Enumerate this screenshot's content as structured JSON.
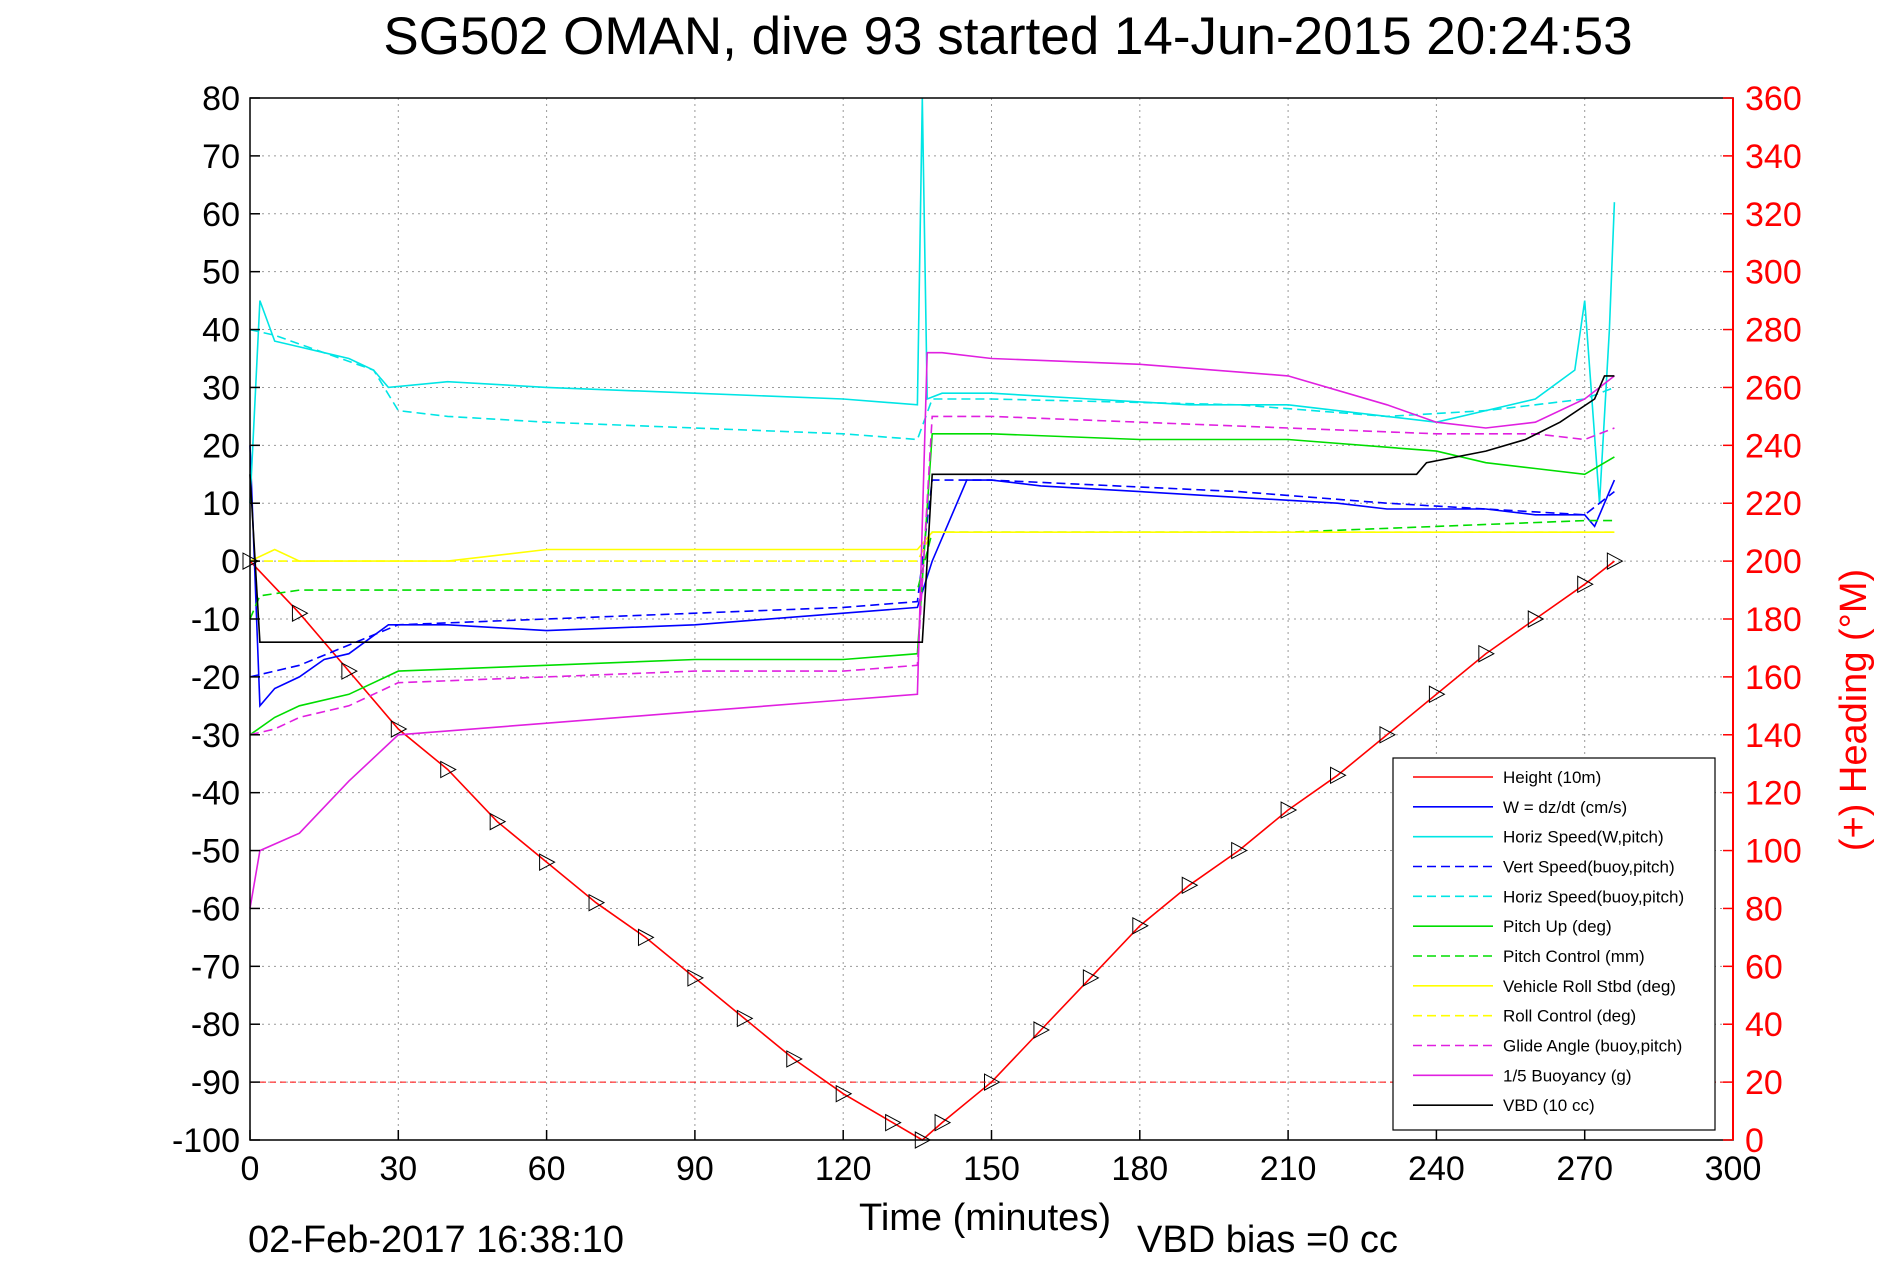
{
  "chart_data": {
    "type": "line",
    "title": "SG502 OMAN, dive 93 started 14-Jun-2015 20:24:53",
    "xlabel": "Time (minutes)",
    "ylabel": "",
    "y2label": "(+) Heading (°M)",
    "xlim": [
      0,
      300
    ],
    "ylim": [
      -100,
      80
    ],
    "y2lim": [
      0,
      360
    ],
    "xticks": [
      0,
      30,
      60,
      90,
      120,
      150,
      180,
      210,
      240,
      270,
      300
    ],
    "yticks": [
      80,
      70,
      60,
      50,
      40,
      30,
      20,
      10,
      0,
      -10,
      -20,
      -30,
      -40,
      -50,
      -60,
      -70,
      -80,
      -90,
      -100
    ],
    "y2ticks": [
      360,
      340,
      320,
      300,
      280,
      260,
      240,
      220,
      200,
      180,
      160,
      140,
      120,
      100,
      80,
      60,
      40,
      20,
      0
    ],
    "grid": true,
    "legend_position": "lower-right",
    "footer_left": "02-Feb-2017 16:38:10",
    "footer_right": "VBD bias =0 cc",
    "series": [
      {
        "name": "Height (10m)",
        "color": "#ff0000",
        "dash": "solid",
        "x": [
          0,
          10,
          20,
          30,
          40,
          50,
          60,
          70,
          80,
          90,
          100,
          110,
          120,
          130,
          136,
          140,
          150,
          160,
          170,
          180,
          190,
          200,
          210,
          220,
          230,
          240,
          250,
          260,
          270,
          276
        ],
        "y": [
          0,
          -9,
          -19,
          -29,
          -36,
          -45,
          -52,
          -59,
          -65,
          -72,
          -79,
          -86,
          -92,
          -97,
          -100,
          -97,
          -90,
          -81,
          -72,
          -63,
          -56,
          -50,
          -43,
          -37,
          -30,
          -23,
          -16,
          -10,
          -4,
          0
        ]
      },
      {
        "name": "W = dz/dt (cm/s)",
        "color": "#0000ff",
        "dash": "solid",
        "x": [
          0,
          2,
          5,
          10,
          15,
          20,
          28,
          40,
          60,
          90,
          120,
          135,
          138,
          145,
          150,
          160,
          180,
          200,
          220,
          230,
          240,
          250,
          260,
          270,
          272,
          275,
          276
        ],
        "y": [
          20,
          -25,
          -22,
          -20,
          -17,
          -16,
          -11,
          -11,
          -12,
          -11,
          -9,
          -8,
          0,
          14,
          14,
          13,
          12,
          11,
          10,
          9,
          9,
          9,
          8,
          8,
          6,
          12,
          14
        ]
      },
      {
        "name": "Horiz Speed(W,pitch)",
        "color": "#00e5e5",
        "dash": "solid",
        "x": [
          0,
          2,
          5,
          10,
          15,
          20,
          25,
          28,
          40,
          60,
          90,
          120,
          135,
          136,
          137,
          140,
          150,
          170,
          190,
          210,
          230,
          240,
          250,
          260,
          268,
          270,
          273,
          275,
          276
        ],
        "y": [
          10,
          45,
          38,
          37,
          36,
          35,
          33,
          30,
          31,
          30,
          29,
          28,
          27,
          80,
          28,
          29,
          29,
          28,
          27,
          27,
          25,
          24,
          26,
          28,
          33,
          45,
          10,
          40,
          62
        ]
      },
      {
        "name": "Vert Speed(buoy,pitch)",
        "color": "#0000ff",
        "dash": "dash",
        "x": [
          0,
          10,
          30,
          60,
          90,
          120,
          135,
          138,
          150,
          200,
          230,
          250,
          270,
          276
        ],
        "y": [
          -20,
          -18,
          -11,
          -10,
          -9,
          -8,
          -7,
          14,
          14,
          12,
          10,
          9,
          8,
          12
        ]
      },
      {
        "name": "Horiz Speed(buoy,pitch)",
        "color": "#00e5e5",
        "dash": "dash",
        "x": [
          0,
          5,
          15,
          25,
          30,
          40,
          60,
          90,
          120,
          135,
          138,
          150,
          200,
          230,
          250,
          270,
          276
        ],
        "y": [
          40,
          39,
          36,
          33,
          26,
          25,
          24,
          23,
          22,
          21,
          28,
          28,
          27,
          25,
          26,
          28,
          30
        ]
      },
      {
        "name": "Pitch Up (deg)",
        "color": "#00dd00",
        "dash": "solid",
        "x": [
          0,
          5,
          10,
          20,
          30,
          60,
          90,
          120,
          135,
          138,
          150,
          180,
          210,
          240,
          250,
          260,
          270,
          276
        ],
        "y": [
          -30,
          -27,
          -25,
          -23,
          -19,
          -18,
          -17,
          -17,
          -16,
          22,
          22,
          21,
          21,
          19,
          17,
          16,
          15,
          18
        ]
      },
      {
        "name": "Pitch Control (mm)",
        "color": "#00dd00",
        "dash": "dash",
        "x": [
          0,
          2,
          10,
          30,
          60,
          90,
          120,
          135,
          138,
          150,
          180,
          210,
          240,
          270,
          276
        ],
        "y": [
          -10,
          -6,
          -5,
          -5,
          -5,
          -5,
          -5,
          -5,
          5,
          5,
          5,
          5,
          6,
          7,
          7
        ]
      },
      {
        "name": "Vehicle Roll Stbd (deg)",
        "color": "#ffff00",
        "dash": "solid",
        "x": [
          0,
          5,
          10,
          20,
          40,
          60,
          90,
          120,
          135,
          138,
          150,
          180,
          210,
          240,
          270,
          276
        ],
        "y": [
          0,
          2,
          0,
          0,
          0,
          2,
          2,
          2,
          2,
          5,
          5,
          5,
          5,
          5,
          5,
          5
        ]
      },
      {
        "name": "Roll Control (deg)",
        "color": "#ffff00",
        "dash": "dash",
        "x": [
          0,
          5,
          30,
          60,
          90,
          120,
          135,
          138,
          180,
          240,
          276
        ],
        "y": [
          0,
          0,
          0,
          0,
          0,
          0,
          0,
          5,
          5,
          5,
          5
        ]
      },
      {
        "name": "Glide Angle (buoy,pitch)",
        "color": "#e020e0",
        "dash": "dash",
        "x": [
          0,
          5,
          10,
          20,
          30,
          60,
          90,
          120,
          135,
          138,
          150,
          180,
          210,
          240,
          260,
          270,
          276
        ],
        "y": [
          -30,
          -29,
          -27,
          -25,
          -21,
          -20,
          -19,
          -19,
          -18,
          25,
          25,
          24,
          23,
          22,
          22,
          21,
          23
        ]
      },
      {
        "name": "1/5 Buoyancy (g)",
        "color": "#e020e0",
        "dash": "solid",
        "x": [
          0,
          2,
          10,
          20,
          30,
          60,
          90,
          120,
          135,
          137,
          140,
          150,
          180,
          210,
          230,
          240,
          250,
          260,
          270,
          276
        ],
        "y": [
          -60,
          -50,
          -47,
          -38,
          -30,
          -28,
          -26,
          -24,
          -23,
          36,
          36,
          35,
          34,
          32,
          27,
          24,
          23,
          24,
          28,
          32
        ]
      },
      {
        "name": "VBD (10 cc)",
        "color": "#000000",
        "dash": "solid",
        "x": [
          0,
          2,
          4,
          30,
          60,
          90,
          120,
          136,
          137,
          138,
          150,
          236,
          238,
          250,
          258,
          265,
          272,
          274,
          276
        ],
        "y": [
          15,
          -14,
          -14,
          -14,
          -14,
          -14,
          -14,
          -14,
          0,
          15,
          15,
          15,
          17,
          19,
          21,
          24,
          28,
          32,
          32
        ]
      }
    ]
  }
}
